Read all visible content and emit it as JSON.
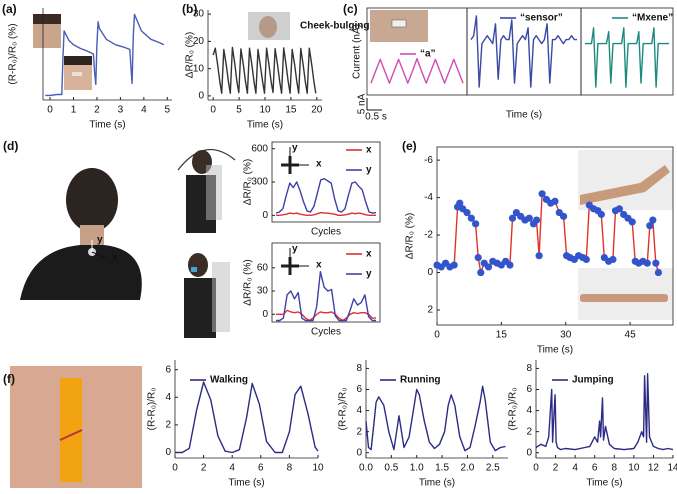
{
  "chart_data": [
    {
      "type": "line",
      "panel_label": "(a)",
      "xlabel": "Time (s)",
      "ylabel": "(R-R₀)/R₀ (%)",
      "color": "#4a5cb8",
      "xlim": [
        -0.3,
        5.2
      ],
      "xticks": [
        0,
        1,
        2,
        3,
        4,
        5
      ],
      "ylim": [
        0,
        1
      ],
      "x": [
        -0.2,
        0,
        0.3,
        0.5,
        0.55,
        0.6,
        0.8,
        1.0,
        1.3,
        1.6,
        1.85,
        1.9,
        1.95,
        2.0,
        2.05,
        2.1,
        2.4,
        2.8,
        3.2,
        3.4,
        3.45,
        3.5,
        3.55,
        3.6,
        3.9,
        4.3,
        4.7,
        4.85
      ],
      "values": [
        0.05,
        0.05,
        0.06,
        0.06,
        0.45,
        0.75,
        0.65,
        0.6,
        0.56,
        0.53,
        0.5,
        0.3,
        0.17,
        0.6,
        0.85,
        0.78,
        0.66,
        0.6,
        0.57,
        0.55,
        0.35,
        0.18,
        0.7,
        0.93,
        0.75,
        0.66,
        0.62,
        0.6
      ]
    },
    {
      "type": "line",
      "panel_label": "(b)",
      "annotation": "Cheek-bulging",
      "xlabel": "Time (s)",
      "ylabel": "ΔR/R₀ (%)",
      "color": "#333333",
      "xlim": [
        -1,
        21
      ],
      "xticks": [
        0,
        5,
        10,
        15,
        20
      ],
      "ylim": [
        -1.5,
        31.5
      ],
      "yticks": [
        0,
        10,
        20,
        30
      ],
      "x": [
        0,
        0.4,
        0.9,
        1.3,
        1.65,
        2.05,
        2.55,
        2.95,
        3.3,
        3.7,
        4.2,
        4.6,
        4.95,
        5.35,
        5.85,
        6.25,
        6.6,
        7,
        7.5,
        7.9,
        8.25,
        8.65,
        9.15,
        9.55,
        9.9,
        10.3,
        10.8,
        11.2,
        11.55,
        11.95,
        12.45,
        12.85,
        13.2,
        13.6,
        14.1,
        14.5,
        14.85,
        15.25,
        15.75,
        16.15,
        16.5,
        16.9,
        17.4,
        17.8,
        18.15,
        18.55,
        19.05,
        19.45,
        19.8
      ],
      "values": [
        15,
        17.5,
        11,
        5,
        1,
        17,
        11,
        5,
        1,
        17.8,
        11.5,
        5,
        1.2,
        17.2,
        11,
        5,
        1,
        17.5,
        11,
        5,
        1,
        17,
        10.5,
        5,
        1,
        17.5,
        11,
        5,
        1.3,
        17.3,
        11,
        5,
        1,
        17.6,
        11,
        5,
        1,
        17,
        11,
        5,
        1,
        17.4,
        11,
        5,
        1,
        17.5,
        11,
        5,
        1
      ]
    },
    {
      "type": "line",
      "panel_label": "(c)",
      "ylabel": "Current (nA)",
      "scale_bars": [
        "5 nA",
        "0.5 s"
      ],
      "ylim": [
        -8,
        14
      ],
      "series": [
        {
          "name": "“a”",
          "color": "#d04cb4",
          "values": [
            -5,
            -2,
            1,
            -2,
            -5,
            -2,
            1,
            -2,
            -5,
            -2,
            1.2,
            -2,
            -5,
            -2,
            1,
            -2,
            -5,
            -2,
            1,
            -2,
            -5
          ]
        }
      ]
    },
    {
      "type": "line",
      "xlabel": "Time (s)",
      "ylim": [
        -8,
        14
      ],
      "series": [
        {
          "name": "“sensor”",
          "color": "#3a48a8",
          "values": [
            6,
            7,
            12,
            -6,
            5,
            6,
            7,
            6,
            5,
            10,
            -4,
            6,
            7,
            6,
            6,
            11,
            -5,
            5,
            6,
            7,
            6,
            9,
            -6,
            6,
            7,
            6,
            5,
            6,
            10,
            -5,
            6,
            6,
            7,
            6,
            5,
            6,
            6,
            7,
            6,
            6
          ]
        }
      ]
    },
    {
      "type": "line",
      "ylim": [
        -8,
        14
      ],
      "series": [
        {
          "name": "“Mxene”",
          "color": "#1d8a80",
          "values": [
            5,
            5,
            5,
            5,
            9,
            -6,
            5,
            5,
            5,
            5,
            5,
            8,
            -5,
            5,
            5,
            5,
            5,
            5,
            9,
            -6,
            5,
            5,
            5,
            5,
            5,
            8,
            -5,
            5,
            5,
            5,
            5,
            5,
            9,
            -6,
            5,
            5,
            5,
            5,
            5,
            5
          ]
        }
      ]
    },
    {
      "type": "line",
      "panel_label": "(d)",
      "photo_axes": [
        "y",
        "x"
      ],
      "inset_axes": [
        "y",
        "x"
      ],
      "xlabel": "Cycles",
      "ylabel": "ΔR/R₀ (%)",
      "ylim": [
        -60,
        660
      ],
      "yticks": [
        0,
        300,
        600
      ],
      "series": [
        {
          "name": "x",
          "color": "#e03030",
          "values": [
            0,
            0,
            5,
            10,
            20,
            15,
            20,
            10,
            5,
            0,
            0,
            5,
            15,
            25,
            20,
            20,
            15,
            10,
            0,
            0,
            5,
            10,
            20,
            15,
            20,
            15,
            5,
            0,
            0,
            0
          ]
        },
        {
          "name": "y",
          "color": "#4040a8",
          "values": [
            20,
            30,
            60,
            180,
            290,
            250,
            300,
            220,
            120,
            40,
            30,
            80,
            200,
            320,
            330,
            310,
            290,
            150,
            40,
            30,
            60,
            180,
            290,
            300,
            260,
            230,
            120,
            30,
            20,
            25
          ]
        }
      ]
    },
    {
      "type": "line",
      "inset_axes": [
        "y",
        "x"
      ],
      "xlabel": "Cycles",
      "ylabel": "ΔR/R₀ (%)",
      "ylim": [
        -10,
        92
      ],
      "yticks": [
        0,
        30,
        60
      ],
      "series": [
        {
          "name": "x",
          "color": "#e03030",
          "values": [
            0,
            0,
            0,
            5,
            3,
            2,
            3,
            0,
            -5,
            -8,
            -5,
            0,
            3,
            2,
            2,
            3,
            0,
            -5,
            -8,
            -5,
            0,
            2,
            1,
            2,
            2,
            0,
            -5,
            -5
          ]
        },
        {
          "name": "y",
          "color": "#4040a8",
          "values": [
            -8,
            -8,
            -5,
            25,
            30,
            20,
            28,
            -5,
            -8,
            -8,
            -8,
            10,
            55,
            35,
            30,
            32,
            -2,
            -8,
            -8,
            -8,
            5,
            20,
            12,
            15,
            25,
            -3,
            -8,
            -8
          ]
        }
      ]
    },
    {
      "type": "line",
      "panel_label": "(e)",
      "xlabel": "Time (s)",
      "ylabel": "ΔR/R₀ (%)",
      "markers": true,
      "y_inverted": true,
      "line_color": "#e0322a",
      "color": "#3355cc",
      "xlim": [
        0,
        55
      ],
      "xticks": [
        0,
        15,
        30,
        45
      ],
      "ylim": [
        -6.7,
        2.8
      ],
      "yticks": [
        -6,
        -4,
        -2,
        0,
        2
      ],
      "x": [
        0,
        1,
        2,
        3,
        4,
        4.8,
        5.3,
        6,
        7,
        8,
        9,
        9.6,
        10.2,
        11,
        12,
        13,
        14,
        15,
        16,
        17,
        17.6,
        18.5,
        19.5,
        20.5,
        21.5,
        22.5,
        23.2,
        23.8,
        24.5,
        25.5,
        26.5,
        27.5,
        28.5,
        29.5,
        30.2,
        31,
        32,
        33,
        34,
        34.8,
        35.5,
        36.5,
        37.5,
        38.3,
        39,
        40,
        41,
        41.6,
        42.5,
        43.5,
        44.5,
        45.5,
        46.2,
        47,
        48,
        49,
        49.6,
        50.3,
        51,
        51.6
      ],
      "values": [
        -0.4,
        -0.3,
        -0.5,
        -0.3,
        -0.4,
        -3.5,
        -3.7,
        -3.4,
        -3.2,
        -2.9,
        -2.6,
        -0.8,
        0,
        -0.5,
        -0.3,
        -0.6,
        -0.5,
        -0.4,
        -0.6,
        -0.4,
        -2.9,
        -3.2,
        -3.0,
        -2.8,
        -2.9,
        -2.6,
        -2.8,
        -0.9,
        -4.2,
        -3.9,
        -3.7,
        -3.8,
        -3.2,
        -3.0,
        -0.9,
        -0.8,
        -0.7,
        -0.9,
        -0.8,
        -0.7,
        -3.6,
        -3.4,
        -3.3,
        -3.1,
        -0.8,
        -0.6,
        -0.7,
        -3.3,
        -3.4,
        -3.1,
        -2.9,
        -2.7,
        -0.6,
        -0.5,
        -0.6,
        -0.5,
        -2.5,
        -2.8,
        -0.5,
        0
      ]
    },
    {
      "type": "line",
      "panel_label": "(f)",
      "xlabel": "Time (s)",
      "ylabel": "(R-R₀)/R₀",
      "xlim": [
        0,
        10
      ],
      "xticks": [
        0,
        2,
        4,
        6,
        8,
        10
      ],
      "ylim": [
        -0.4,
        6.7
      ],
      "yticks": [
        0,
        2,
        4,
        6
      ],
      "x": [
        0,
        0.5,
        1,
        1.5,
        2,
        2.5,
        3,
        3.5,
        4,
        4.5,
        5,
        5.4,
        5.9,
        6.4,
        7,
        7.5,
        8,
        8.4,
        8.8,
        9.3,
        9.8,
        10
      ],
      "series": [
        {
          "name": "Walking",
          "color": "#2b2b85",
          "values": [
            0,
            0,
            0.3,
            3,
            5.1,
            3.8,
            1.2,
            0.1,
            0,
            0.2,
            2.5,
            5.0,
            3.5,
            0.8,
            0,
            0,
            1.5,
            4.2,
            4.8,
            2.8,
            0.4,
            0.1
          ]
        }
      ]
    },
    {
      "type": "line",
      "xlabel": "Time (s)",
      "ylabel": "(R-R₀)/R₀",
      "xlim": [
        0,
        2.8
      ],
      "xticks": [
        {
          "value": 0,
          "label": "0.0"
        },
        0.5,
        {
          "value": 1,
          "label": "1.0"
        },
        1.5,
        {
          "value": 2,
          "label": "2.0"
        },
        2.5
      ],
      "ylim": [
        -0.5,
        8.8
      ],
      "yticks": [
        0,
        2,
        4,
        6,
        8
      ],
      "x": [
        0,
        0.05,
        0.1,
        0.15,
        0.2,
        0.25,
        0.35,
        0.45,
        0.55,
        0.65,
        0.75,
        0.85,
        0.95,
        1.0,
        1.05,
        1.15,
        1.25,
        1.35,
        1.45,
        1.55,
        1.62,
        1.68,
        1.75,
        1.85,
        1.95,
        2.05,
        2.15,
        2.25,
        2.3,
        2.35,
        2.45,
        2.55,
        2.65,
        2.75
      ],
      "series": [
        {
          "name": "Running",
          "color": "#2b2b85",
          "values": [
            3,
            0.5,
            0.3,
            2.5,
            4.8,
            5.3,
            4.5,
            2,
            0.3,
            3.5,
            0.5,
            1.5,
            4.5,
            6,
            5.5,
            3,
            1,
            0.4,
            0.8,
            2,
            4.5,
            5.5,
            4.5,
            1.5,
            0.2,
            0.5,
            2.5,
            4.8,
            6.3,
            5,
            1,
            0.2,
            0.5,
            0.6
          ]
        }
      ]
    },
    {
      "type": "line",
      "xlabel": "Time (s)",
      "ylabel": "(R-R₀)/R₀",
      "xlim": [
        0,
        14
      ],
      "xticks": [
        0,
        2,
        4,
        6,
        8,
        10,
        12,
        14
      ],
      "ylim": [
        -0.5,
        8.8
      ],
      "yticks": [
        0,
        2,
        4,
        6,
        8
      ],
      "x": [
        0,
        0.5,
        1,
        1.3,
        1.6,
        1.7,
        1.8,
        1.95,
        2.05,
        2.2,
        2.5,
        3,
        4,
        5,
        5.5,
        6,
        6.3,
        6.5,
        6.6,
        6.8,
        6.9,
        7.1,
        7.5,
        8,
        9,
        10,
        10.4,
        10.8,
        11,
        11.1,
        11.3,
        11.4,
        11.6,
        12,
        12.5,
        13,
        13.5,
        14
      ],
      "series": [
        {
          "name": "Jumping",
          "color": "#2b2b85",
          "values": [
            0.5,
            0.8,
            0.6,
            1.5,
            6,
            1,
            3,
            5.5,
            1,
            0.5,
            0.3,
            0.4,
            0.3,
            0.5,
            0.6,
            1.5,
            1,
            3,
            1.5,
            5.2,
            1.2,
            2.5,
            0.8,
            0.4,
            0.3,
            0.4,
            1,
            2,
            1.5,
            7.3,
            1,
            7.5,
            1.5,
            0.6,
            0.4,
            0.3,
            0.4,
            0.3
          ]
        }
      ]
    }
  ]
}
